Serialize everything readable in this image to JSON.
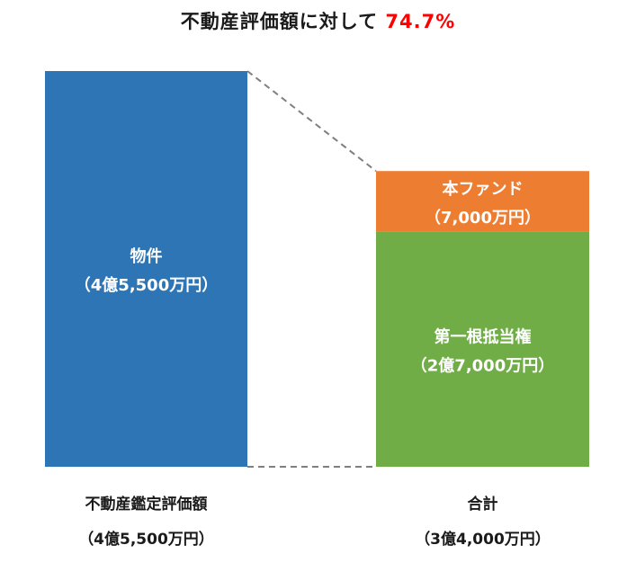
{
  "title": {
    "text": "不動産評価額に対して",
    "ratio": "74.7%",
    "ratio_color": "#ff0000"
  },
  "colors": {
    "property": "#2e75b6",
    "fund": "#ed7d31",
    "first_mortgage": "#70ad47",
    "connector": "#7f7f7f"
  },
  "chart_data": {
    "type": "bar",
    "stacked": true,
    "units": "万円",
    "ylim": [
      0,
      45500
    ],
    "categories": [
      {
        "label": "不動産鑑定評価額",
        "sublabel": "（4億5,500万円）",
        "total": 45500
      },
      {
        "label": "合計",
        "sublabel": "（3億4,000万円）",
        "total": 34000
      }
    ],
    "bars": [
      {
        "category": "不動産鑑定評価額",
        "segments": [
          {
            "name": "物件",
            "amount_label": "（4億5,500万円）",
            "value": 45500,
            "color": "#2e75b6"
          }
        ]
      },
      {
        "category": "合計",
        "segments": [
          {
            "name": "第一根抵当権",
            "amount_label": "（2億7,000万円）",
            "value": 27000,
            "color": "#70ad47"
          },
          {
            "name": "本ファンド",
            "amount_label": "（7,000万円）",
            "value": 7000,
            "color": "#ed7d31"
          }
        ]
      }
    ],
    "connectors": "dashed"
  }
}
